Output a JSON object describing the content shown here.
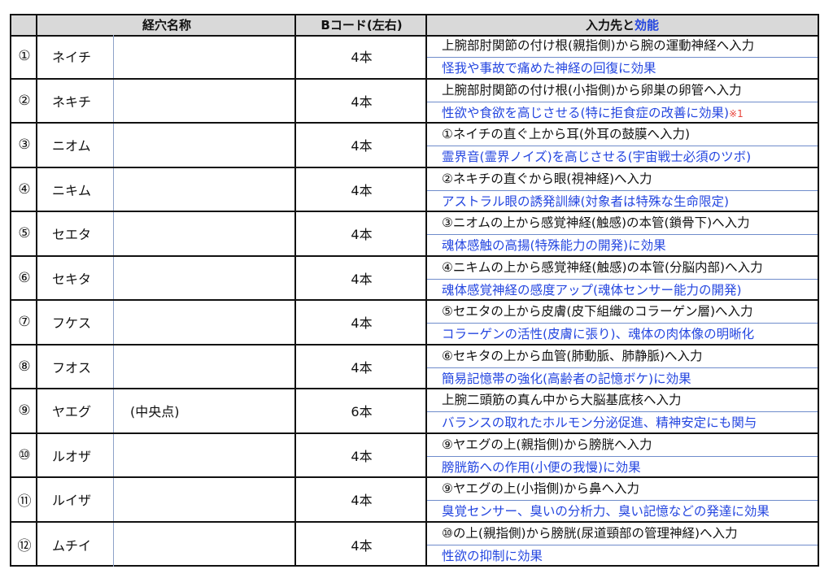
{
  "header": {
    "name_col": "経穴名称",
    "code_col": "Bコード(左右)",
    "input_col_a": "入力先と",
    "input_col_b": "効能"
  },
  "colors": {
    "effect_text": "#2446e0",
    "note": "#e8453c",
    "header_bg": "#d9d9d9"
  },
  "rows": [
    {
      "num": "①",
      "name": "ネイチ",
      "sub": "",
      "code": "4本",
      "input": "上腕部肘関節の付け根(親指側)から腕の運動神経へ入力",
      "effect": "怪我や事故で痛めた神経の回復に効果",
      "note": ""
    },
    {
      "num": "②",
      "name": "ネキチ",
      "sub": "",
      "code": "4本",
      "input": "上腕部肘関節の付け根(小指側)から卵巣の卵管へ入力",
      "effect": "性欲や食欲を高じさせる(特に拒食症の改善に効果)",
      "note": "※1"
    },
    {
      "num": "③",
      "name": "ニオム",
      "sub": "",
      "code": "4本",
      "input": "①ネイチの直ぐ上から耳(外耳の鼓膜へ入力)",
      "effect": "霊界音(霊界ノイズ)を高じさせる(宇宙戦士必須のツボ)",
      "note": ""
    },
    {
      "num": "④",
      "name": "ニキム",
      "sub": "",
      "code": "4本",
      "input": "②ネキチの直ぐから眼(視神経)へ入力",
      "effect": "アストラル眼の誘発訓練(対象者は特殊な生命限定)",
      "note": ""
    },
    {
      "num": "⑤",
      "name": "セエタ",
      "sub": "",
      "code": "4本",
      "input": "③ニオムの上から感覚神経(触感)の本管(鎖骨下)へ入力",
      "effect": "魂体感触の高揚(特殊能力の開発)に効果",
      "note": ""
    },
    {
      "num": "⑥",
      "name": "セキタ",
      "sub": "",
      "code": "4本",
      "input": "④ニキムの上から感覚神経(触感)の本管(分脳内部)へ入力",
      "effect": "魂体感覚神経の感度アップ(魂体センサー能力の開発)",
      "note": ""
    },
    {
      "num": "⑦",
      "name": "フケス",
      "sub": "",
      "code": "4本",
      "input": "⑤セエタの上から皮膚(皮下組織のコラーゲン層)へ入力",
      "effect": "コラーゲンの活性(皮膚に張り)、魂体の肉体像の明晰化",
      "note": ""
    },
    {
      "num": "⑧",
      "name": "フオス",
      "sub": "",
      "code": "4本",
      "input": "⑥セキタの上から血管(肺動脈、肺静脈)へ入力",
      "effect": "簡易記憶帯の強化(高齢者の記憶ボケ)に効果",
      "note": ""
    },
    {
      "num": "⑨",
      "name": "ヤエグ",
      "sub": "(中央点)",
      "code": "6本",
      "input": "上腕二頭筋の真ん中から大脳基底核へ入力",
      "effect": "バランスの取れたホルモン分泌促進、精神安定にも関与",
      "note": ""
    },
    {
      "num": "⑩",
      "name": "ルオザ",
      "sub": "",
      "code": "4本",
      "input": "⑨ヤエグの上(親指側)から膀胱へ入力",
      "effect": "膀胱筋への作用(小便の我慢)に効果",
      "note": ""
    },
    {
      "num": "⑪",
      "name": "ルイザ",
      "sub": "",
      "code": "4本",
      "input": "⑨ヤエグの上(小指側)から鼻へ入力",
      "effect": "臭覚センサー、臭いの分析力、臭い記憶などの発達に効果",
      "note": ""
    },
    {
      "num": "⑫",
      "name": "ムチイ",
      "sub": "",
      "code": "4本",
      "input": "⑩の上(親指側)から膀胱(尿道頸部の管理神経)へ入力",
      "effect": "性欲の抑制に効果",
      "note": ""
    }
  ]
}
